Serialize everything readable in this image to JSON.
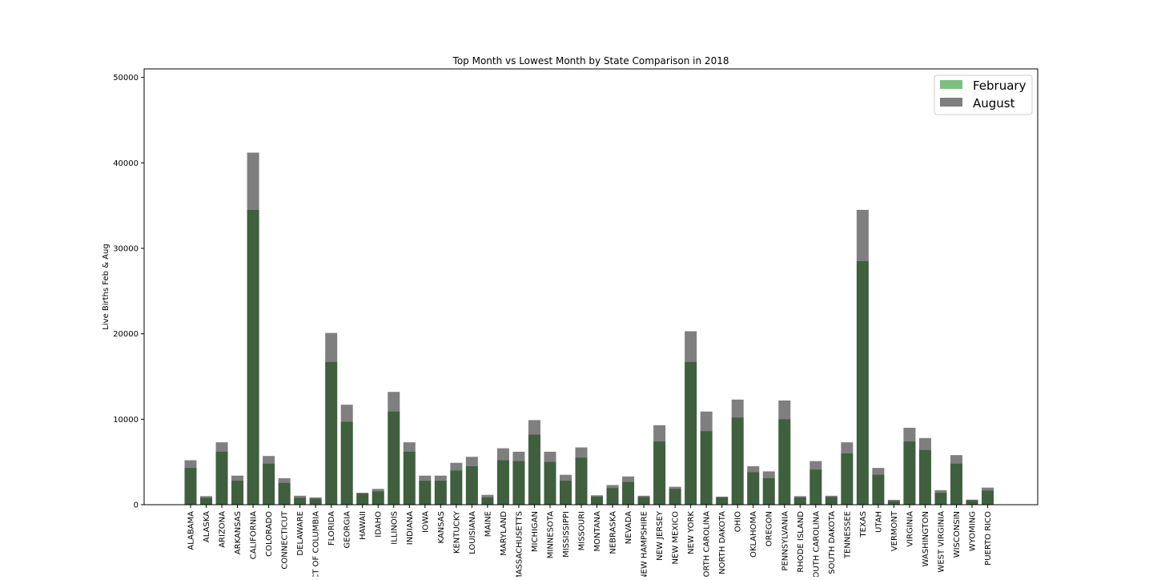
{
  "chart_data": {
    "type": "bar",
    "title": "Top Month vs Lowest Month by State Comparison in 2018",
    "xlabel": "",
    "ylabel": "Live Births Feb & Aug",
    "ylim": [
      0,
      51000
    ],
    "yticks": [
      0,
      10000,
      20000,
      30000,
      40000,
      50000
    ],
    "legend_position": "top-right",
    "categories": [
      "ALABAMA",
      "ALASKA",
      "ARIZONA",
      "ARKANSAS",
      "CALIFORNIA",
      "COLORADO",
      "CONNECTICUT",
      "DELAWARE",
      "DISTRICT OF COLUMBIA",
      "FLORIDA",
      "GEORGIA",
      "HAWAII",
      "IDAHO",
      "ILLINOIS",
      "INDIANA",
      "IOWA",
      "KANSAS",
      "KENTUCKY",
      "LOUISIANA",
      "MAINE",
      "MARYLAND",
      "MASSACHUSETTS",
      "MICHIGAN",
      "MINNESOTA",
      "MISSISSIPPI",
      "MISSOURI",
      "MONTANA",
      "NEBRASKA",
      "NEVADA",
      "NEW HAMPSHIRE",
      "NEW JERSEY",
      "NEW MEXICO",
      "NEW YORK",
      "NORTH CAROLINA",
      "NORTH DAKOTA",
      "OHIO",
      "OKLAHOMA",
      "OREGON",
      "PENNSYLVANIA",
      "RHODE ISLAND",
      "SOUTH CAROLINA",
      "SOUTH DAKOTA",
      "TENNESSEE",
      "TEXAS",
      "UTAH",
      "VERMONT",
      "VIRGINIA",
      "WASHINGTON",
      "WEST VIRGINIA",
      "WISCONSIN",
      "WYOMING",
      "PUERTO RICO"
    ],
    "series": [
      {
        "name": "February",
        "color": "#008000",
        "alpha": 0.5,
        "values": [
          4300,
          800,
          6200,
          2800,
          34500,
          4800,
          2550,
          800,
          700,
          16700,
          9700,
          1300,
          1550,
          10900,
          6200,
          2800,
          2800,
          4000,
          4500,
          850,
          5200,
          5100,
          8200,
          5000,
          2800,
          5500,
          950,
          1950,
          2650,
          900,
          7400,
          1850,
          16700,
          8600,
          850,
          10200,
          3800,
          3100,
          10000,
          850,
          4100,
          900,
          6000,
          28500,
          3500,
          430,
          7400,
          6400,
          1400,
          4800,
          530,
          1650
        ]
      },
      {
        "name": "August",
        "color": "#000000",
        "alpha": 0.5,
        "values": [
          5200,
          1000,
          7300,
          3400,
          41200,
          5700,
          3100,
          1050,
          850,
          20100,
          11700,
          1400,
          1850,
          13200,
          7300,
          3400,
          3400,
          4900,
          5600,
          1150,
          6600,
          6200,
          9900,
          6200,
          3500,
          6700,
          1100,
          2300,
          3300,
          1050,
          9300,
          2100,
          20300,
          10900,
          950,
          12300,
          4500,
          3900,
          12200,
          1000,
          5100,
          1050,
          7300,
          34500,
          4300,
          570,
          9000,
          7800,
          1700,
          5800,
          590,
          2000
        ]
      }
    ]
  }
}
